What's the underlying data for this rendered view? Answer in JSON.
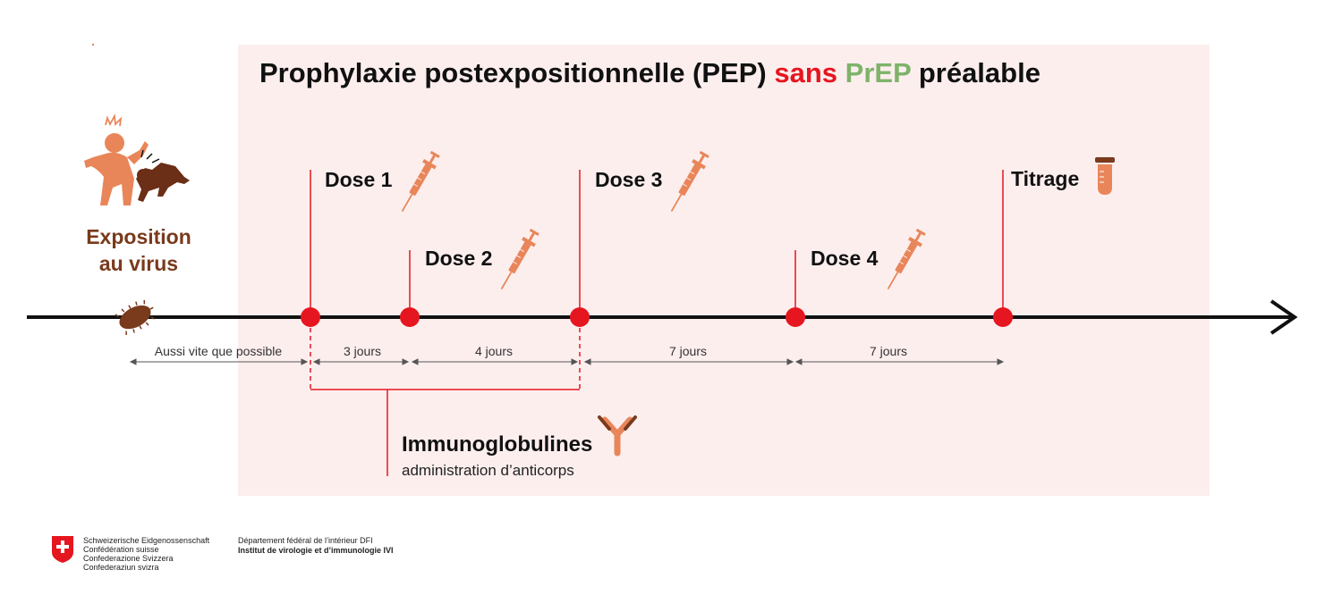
{
  "title": {
    "part1": "Prophylaxie postexpositionnelle (PEP)",
    "part2": "sans",
    "part3": "PrEP",
    "part4": "préalable"
  },
  "exposure": {
    "line1": "Exposition",
    "line2": "au virus"
  },
  "milestones": [
    {
      "label": "Dose 1",
      "icon": "syringe-icon"
    },
    {
      "label": "Dose 2",
      "icon": "syringe-icon"
    },
    {
      "label": "Dose 3",
      "icon": "syringe-icon"
    },
    {
      "label": "Dose 4",
      "icon": "syringe-icon"
    },
    {
      "label": "Titrage",
      "icon": "test-tube-icon"
    }
  ],
  "intervals": [
    {
      "label": "Aussi vite que possible"
    },
    {
      "label": "3 jours"
    },
    {
      "label": "4 jours"
    },
    {
      "label": "7 jours"
    },
    {
      "label": "7 jours"
    }
  ],
  "immunoglobulins": {
    "title": "Immunoglobulines",
    "subtitle": "administration d’anticorps",
    "icon": "antibody-icon"
  },
  "footer": {
    "confederation": [
      "Schweizerische Eidgenossenschaft",
      "Confédération suisse",
      "Confederazione Svizzera",
      "Confederaziun svizra"
    ],
    "department": "Département fédéral de l’intérieur DFI",
    "institute": "Institut de virologie et d’immunologie IVI"
  },
  "colors": {
    "red": "#e5161f",
    "green": "#7eb36a",
    "orange": "#e8865a",
    "brown": "#7a3a1c",
    "panel": "#fdeeee"
  }
}
